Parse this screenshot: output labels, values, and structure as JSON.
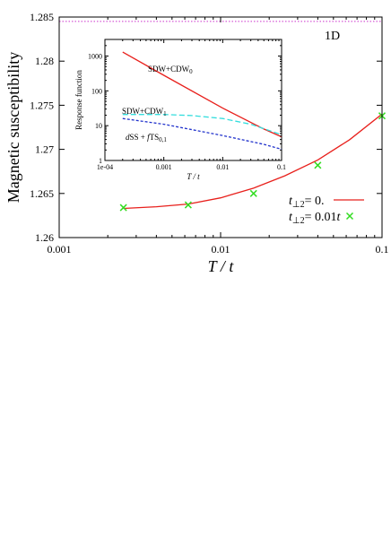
{
  "chart_data": [
    {
      "type": "line",
      "xlabel": "T / t",
      "ylabel": "Magnetic susceptibility",
      "xscale": "log",
      "xlim": [
        0.001,
        0.1
      ],
      "ylim": [
        1.26,
        1.285
      ],
      "xticks": [
        "0.001",
        "0.01",
        "0.1"
      ],
      "yticks": [
        "1.26",
        "1.265",
        "1.27",
        "1.275",
        "1.28",
        "1.285"
      ],
      "annotation": "1D",
      "reference_line": {
        "y": 1.2845,
        "color": "#cc33cc",
        "style": "dotted"
      },
      "legend_position": "bottom-right",
      "series": [
        {
          "name_parts": [
            "t",
            "⊥2",
            "= 0."
          ],
          "style": "line",
          "color": "#e8201c",
          "x": [
            0.0025,
            0.004,
            0.0063,
            0.01,
            0.016,
            0.025,
            0.04,
            0.063,
            0.1
          ],
          "y": [
            1.2633,
            1.2635,
            1.2638,
            1.2645,
            1.2656,
            1.267,
            1.2688,
            1.2711,
            1.274
          ]
        },
        {
          "name_parts": [
            "t",
            "⊥2",
            "= 0.01",
            "t"
          ],
          "style": "markers",
          "marker": "x",
          "color": "#33dd22",
          "x": [
            0.0025,
            0.0063,
            0.016,
            0.04,
            0.1
          ],
          "y": [
            1.2634,
            1.2637,
            1.265,
            1.2682,
            1.2738
          ]
        }
      ]
    },
    {
      "type": "line",
      "role": "inset",
      "xlabel": "T / t",
      "ylabel": "Response function",
      "xscale": "log",
      "yscale": "log",
      "xlim": [
        0.0001,
        0.1
      ],
      "ylim": [
        1,
        3000
      ],
      "xticks": [
        "1e-04",
        "0.001",
        "0.01",
        "0.1"
      ],
      "yticks": [
        "1",
        "10",
        "100",
        "1000"
      ],
      "series": [
        {
          "label_parts": [
            "SDW+CDW",
            "0"
          ],
          "color": "#e8201c",
          "style": "solid",
          "x": [
            0.0002,
            0.001,
            0.01,
            0.05,
            0.1
          ],
          "y": [
            1300,
            280,
            32,
            8,
            4.8
          ]
        },
        {
          "label_parts": [
            "SDW+CDW",
            "1"
          ],
          "color": "#33dddd",
          "style": "dashed",
          "x": [
            0.0002,
            0.001,
            0.003,
            0.01,
            0.03,
            0.1
          ],
          "y": [
            21,
            21,
            19.5,
            16,
            11,
            5.5
          ]
        },
        {
          "label_parts": [
            "d",
            "SS + ",
            "f",
            "TS",
            "0,1"
          ],
          "color": "#2233cc",
          "style": "dotted",
          "x": [
            0.0002,
            0.001,
            0.01,
            0.05,
            0.1
          ],
          "y": [
            16,
            11,
            5.2,
            2.9,
            2.1
          ]
        }
      ]
    }
  ]
}
